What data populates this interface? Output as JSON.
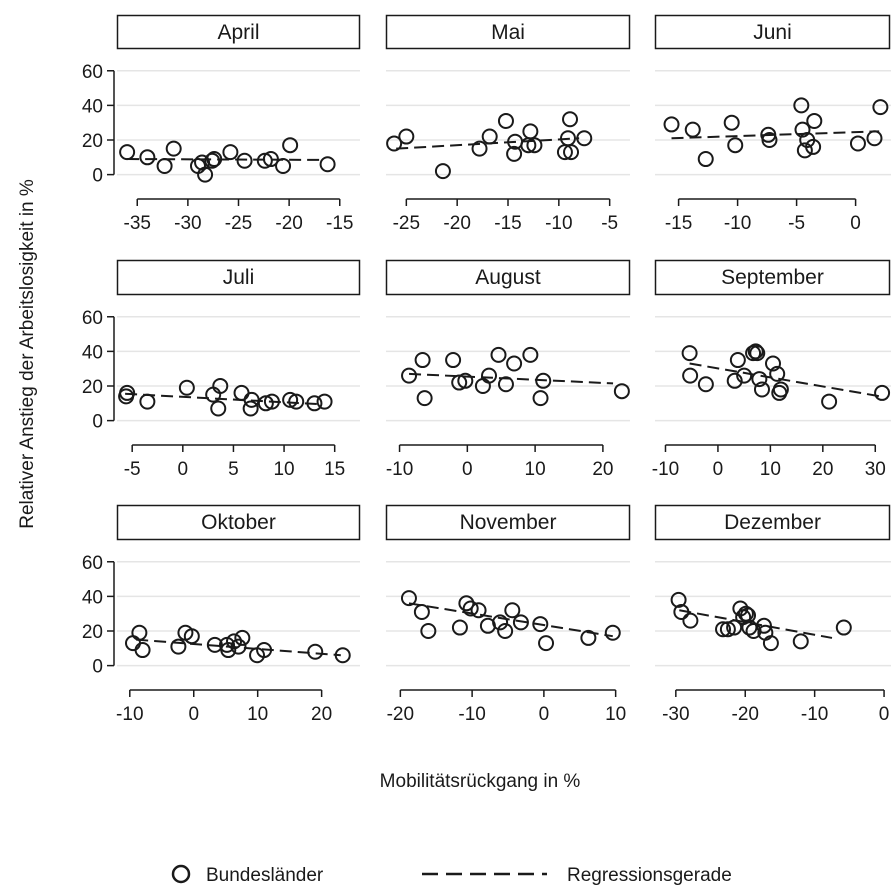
{
  "chart_data": {
    "type": "scatter",
    "xlabel": "Mobilitätsrückgang in %",
    "ylabel": "Relativer Anstieg der Arbeitslosigkeit in %",
    "ylim": [
      -6,
      72
    ],
    "yticks": [
      0,
      20,
      40,
      60
    ],
    "grid": true,
    "legend_position": "bottom",
    "legend": {
      "points": "Bundesländer",
      "line": "Regressionsgerade"
    },
    "panels": [
      {
        "title": "April",
        "xlim": [
          -37,
          -13
        ],
        "xticks": [
          -35,
          -30,
          -25,
          -20,
          -15
        ],
        "points": [
          [
            -36,
            13
          ],
          [
            -34,
            10
          ],
          [
            -32.3,
            5
          ],
          [
            -31.4,
            15
          ],
          [
            -29,
            5
          ],
          [
            -28.6,
            7
          ],
          [
            -28.3,
            0
          ],
          [
            -27.6,
            8
          ],
          [
            -27.4,
            9
          ],
          [
            -25.8,
            13
          ],
          [
            -24.4,
            8
          ],
          [
            -22.4,
            8
          ],
          [
            -21.8,
            9
          ],
          [
            -20.6,
            5
          ],
          [
            -19.9,
            17
          ],
          [
            -16.2,
            6
          ]
        ],
        "regression": {
          "x": [
            -36,
            -17
          ],
          "y": [
            9,
            8.5
          ]
        }
      },
      {
        "title": "Mai",
        "xlim": [
          -27,
          -3
        ],
        "xticks": [
          -25,
          -20,
          -15,
          -10,
          -5
        ],
        "points": [
          [
            -26.2,
            18
          ],
          [
            -25,
            22
          ],
          [
            -21.4,
            2
          ],
          [
            -17.8,
            15
          ],
          [
            -16.8,
            22
          ],
          [
            -15.2,
            31
          ],
          [
            -14.4,
            12
          ],
          [
            -14.3,
            19
          ],
          [
            -13,
            17
          ],
          [
            -12.8,
            25
          ],
          [
            -12.4,
            17
          ],
          [
            -9.4,
            13
          ],
          [
            -9.1,
            21
          ],
          [
            -8.9,
            32
          ],
          [
            -8.8,
            13
          ],
          [
            -7.5,
            21
          ]
        ],
        "regression": {
          "x": [
            -26,
            -8
          ],
          "y": [
            15,
            21
          ]
        }
      },
      {
        "title": "Juni",
        "xlim": [
          -17,
          3
        ],
        "xticks": [
          -15,
          -10,
          -5,
          0
        ],
        "points": [
          [
            -15.6,
            29
          ],
          [
            -13.8,
            26
          ],
          [
            -12.7,
            9
          ],
          [
            -10.5,
            30
          ],
          [
            -10.2,
            17
          ],
          [
            -7.4,
            23
          ],
          [
            -7.3,
            20
          ],
          [
            -4.6,
            40
          ],
          [
            -4.5,
            26
          ],
          [
            -4.3,
            14
          ],
          [
            -4.1,
            20
          ],
          [
            -3.6,
            16
          ],
          [
            -3.5,
            31
          ],
          [
            0.2,
            18
          ],
          [
            1.6,
            21
          ],
          [
            2.1,
            39
          ]
        ],
        "regression": {
          "x": [
            -15.6,
            2
          ],
          "y": [
            21,
            25
          ]
        }
      },
      {
        "title": "Juli",
        "xlim": [
          -6.5,
          17.5
        ],
        "xticks": [
          -5,
          0,
          5,
          10,
          15
        ],
        "points": [
          [
            -5.6,
            14
          ],
          [
            -5.5,
            16
          ],
          [
            -3.5,
            11
          ],
          [
            0.4,
            19
          ],
          [
            3,
            15
          ],
          [
            3.5,
            7
          ],
          [
            3.7,
            20
          ],
          [
            5.8,
            16
          ],
          [
            6.7,
            7
          ],
          [
            6.8,
            12
          ],
          [
            8.2,
            10
          ],
          [
            8.8,
            11
          ],
          [
            10.6,
            12
          ],
          [
            11.2,
            11
          ],
          [
            13,
            10
          ],
          [
            14,
            11
          ]
        ],
        "regression": {
          "x": [
            -5.7,
            13.5
          ],
          "y": [
            15.5,
            9.5
          ]
        }
      },
      {
        "title": "August",
        "xlim": [
          -12,
          24
        ],
        "xticks": [
          -10,
          0,
          10,
          20
        ],
        "points": [
          [
            -8.6,
            26
          ],
          [
            -6.6,
            35
          ],
          [
            -6.3,
            13
          ],
          [
            -2.1,
            35
          ],
          [
            -1.2,
            22
          ],
          [
            -0.3,
            23
          ],
          [
            2.3,
            20
          ],
          [
            3.2,
            26
          ],
          [
            4.6,
            38
          ],
          [
            5.7,
            21
          ],
          [
            6.9,
            33
          ],
          [
            9.3,
            38
          ],
          [
            10.8,
            13
          ],
          [
            11.2,
            23
          ],
          [
            22.8,
            17
          ]
        ],
        "regression": {
          "x": [
            -8.6,
            21.5
          ],
          "y": [
            27,
            21.5
          ]
        }
      },
      {
        "title": "September",
        "xlim": [
          -12,
          33
        ],
        "xticks": [
          -10,
          0,
          10,
          20,
          30
        ],
        "points": [
          [
            -5.4,
            39
          ],
          [
            -5.3,
            26
          ],
          [
            -2.3,
            21
          ],
          [
            3.2,
            23
          ],
          [
            3.8,
            35
          ],
          [
            5,
            26
          ],
          [
            6.7,
            39
          ],
          [
            7.2,
            40
          ],
          [
            7.5,
            39
          ],
          [
            7.9,
            24
          ],
          [
            8.4,
            18
          ],
          [
            10.5,
            33
          ],
          [
            11.3,
            27
          ],
          [
            11.7,
            16
          ],
          [
            12,
            18
          ],
          [
            21.2,
            11
          ],
          [
            31.3,
            16
          ]
        ],
        "regression": {
          "x": [
            -5.4,
            31
          ],
          "y": [
            33,
            14
          ]
        }
      },
      {
        "title": "Oktober",
        "xlim": [
          -12,
          26
        ],
        "xticks": [
          -10,
          0,
          10,
          20
        ],
        "points": [
          [
            -9.5,
            13
          ],
          [
            -8.5,
            19
          ],
          [
            -8,
            9
          ],
          [
            -2.4,
            11
          ],
          [
            -1.3,
            19
          ],
          [
            -0.3,
            17
          ],
          [
            3.3,
            12
          ],
          [
            5.2,
            12
          ],
          [
            5.4,
            9
          ],
          [
            6.3,
            14
          ],
          [
            7,
            11
          ],
          [
            7.6,
            16
          ],
          [
            9.9,
            6
          ],
          [
            11,
            9
          ],
          [
            19,
            8
          ],
          [
            23.3,
            6
          ]
        ],
        "regression": {
          "x": [
            -9,
            23
          ],
          "y": [
            15,
            6
          ]
        }
      },
      {
        "title": "November",
        "xlim": [
          -22,
          12
        ],
        "xticks": [
          -20,
          -10,
          0,
          10
        ],
        "points": [
          [
            -18.8,
            39
          ],
          [
            -17,
            31
          ],
          [
            -16.1,
            20
          ],
          [
            -11.7,
            22
          ],
          [
            -10.8,
            36
          ],
          [
            -10.2,
            33
          ],
          [
            -9.1,
            32
          ],
          [
            -7.8,
            23
          ],
          [
            -6.1,
            25
          ],
          [
            -5.4,
            20
          ],
          [
            -4.4,
            32
          ],
          [
            -3.2,
            25
          ],
          [
            -0.5,
            24
          ],
          [
            0.3,
            13
          ],
          [
            6.2,
            16
          ],
          [
            9.6,
            19
          ]
        ],
        "regression": {
          "x": [
            -18.8,
            9.6
          ],
          "y": [
            36,
            17
          ]
        }
      },
      {
        "title": "Dezember",
        "xlim": [
          -33,
          1
        ],
        "xticks": [
          -30,
          -20,
          -10,
          0
        ],
        "points": [
          [
            -29.6,
            38
          ],
          [
            -29.2,
            31
          ],
          [
            -27.9,
            26
          ],
          [
            -23.2,
            21
          ],
          [
            -22.5,
            21
          ],
          [
            -21.6,
            22
          ],
          [
            -20.7,
            33
          ],
          [
            -20.3,
            28
          ],
          [
            -19.9,
            30
          ],
          [
            -19.6,
            29
          ],
          [
            -19.4,
            22
          ],
          [
            -18.8,
            20
          ],
          [
            -17.3,
            23
          ],
          [
            -17.1,
            19
          ],
          [
            -16.3,
            13
          ],
          [
            -12,
            14
          ],
          [
            -5.8,
            22
          ]
        ],
        "regression": {
          "x": [
            -29.5,
            -7.5
          ],
          "y": [
            32,
            16
          ]
        }
      }
    ]
  }
}
